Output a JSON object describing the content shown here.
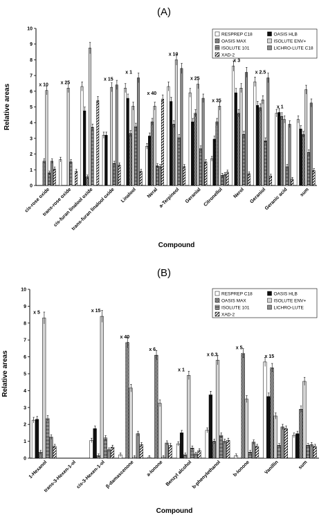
{
  "chart_data": [
    {
      "type": "bar",
      "title": "(A)",
      "xlabel": "Compound",
      "ylabel": "Relative areas",
      "ylim": [
        0,
        10
      ],
      "yticks": [
        "0",
        "1",
        "2",
        "3",
        "4",
        "5",
        "6",
        "7",
        "8",
        "9",
        "10"
      ],
      "legend_position": "top-right",
      "categories": [
        "cis-rose oxide",
        "trans-rose oxide",
        "cis-furan linalool oxide",
        "trans-furan linalool oxide",
        "Linalool",
        "Neral",
        "a-Terpineol",
        "Geranial",
        "Citronellol",
        "Nerol",
        "Geraniol",
        "Geranic acid",
        "sum"
      ],
      "annotations": [
        "x 10",
        "x 25",
        "",
        "x 15",
        "x 1",
        "x 40",
        "x 10",
        "x 25",
        "x 35",
        "x 3",
        "x 2.5",
        "x 1",
        ""
      ],
      "series": [
        {
          "name": "RESPREP C18",
          "values": [
            0,
            1.65,
            6.3,
            3.2,
            6.2,
            2.5,
            6.3,
            5.9,
            1.7,
            7.6,
            6.6,
            4.6,
            4.2
          ]
        },
        {
          "name": "OASIS HLB",
          "values": [
            0,
            0,
            4.75,
            3.2,
            5.55,
            3.15,
            5.35,
            4.05,
            2.95,
            5.9,
            5.1,
            4.65,
            3.6
          ]
        },
        {
          "name": "OASIS MAX",
          "values": [
            1.55,
            0,
            0.55,
            0,
            3.3,
            4.05,
            3.9,
            4.6,
            4.05,
            4.6,
            4.95,
            4.4,
            3.25
          ]
        },
        {
          "name": "ISOLUTE ENV+",
          "values": [
            6.05,
            6.2,
            8.75,
            6.25,
            5.05,
            5.05,
            8.0,
            6.45,
            5.05,
            6.2,
            5.45,
            4.2,
            6.1
          ]
        },
        {
          "name": "ISOLUTE 101",
          "values": [
            0.8,
            1.5,
            3.7,
            1.4,
            3.75,
            1.25,
            3.05,
            2.35,
            0.65,
            3.25,
            2.85,
            1.2,
            2.1
          ]
        },
        {
          "name": "LICHRO-LUTE C18",
          "values": [
            1.55,
            0,
            0,
            6.4,
            6.85,
            1.2,
            7.45,
            5.55,
            0.7,
            7.2,
            6.85,
            3.9,
            5.25
          ]
        },
        {
          "name": "XAD-2",
          "values": [
            1.05,
            0.9,
            5.4,
            1.3,
            0.9,
            5.5,
            1.2,
            1.5,
            0.85,
            0.75,
            0.6,
            0.4,
            0.95
          ]
        }
      ]
    },
    {
      "type": "bar",
      "title": "(B)",
      "xlabel": "Compound",
      "ylabel": "Relative areas",
      "ylim": [
        0,
        10
      ],
      "yticks": [
        "0",
        "1",
        "2",
        "3",
        "4",
        "5",
        "6",
        "7",
        "8",
        "9",
        "10"
      ],
      "legend_position": "top-right",
      "categories": [
        "1-Hexanol",
        "trans-3-Hexen-1-ol",
        "cis-3-Hexen-1-ol",
        "β-damascenone",
        "a-Ionone",
        "Benzyl alcohol",
        "b-phenylethanol",
        "b-Ionone",
        "Vanillin",
        "sum"
      ],
      "annotations": [
        "x 5",
        "",
        "x 15",
        "x 40",
        "x 6",
        "x 1",
        "x 0.3",
        "x 5",
        "x 15",
        ""
      ],
      "series": [
        {
          "name": "RESPREP C18",
          "values": [
            2.25,
            0,
            1.05,
            0.2,
            0.05,
            0.85,
            1.65,
            0.15,
            5.7,
            1.35
          ]
        },
        {
          "name": "OASIS HLB",
          "values": [
            2.3,
            0,
            1.75,
            0,
            0,
            1.5,
            3.75,
            0,
            3.65,
            1.45
          ]
        },
        {
          "name": "OASIS MAX",
          "values": [
            0.35,
            0,
            0.15,
            6.85,
            6.1,
            0.2,
            1.0,
            6.2,
            5.35,
            2.9
          ]
        },
        {
          "name": "ISOLUTE ENV+",
          "values": [
            8.3,
            0,
            8.4,
            4.15,
            3.25,
            4.9,
            5.8,
            3.5,
            2.5,
            4.55
          ]
        },
        {
          "name": "ISOLUTE 101",
          "values": [
            2.35,
            0,
            1.2,
            0.05,
            0.05,
            0.6,
            1.35,
            0.35,
            0.75,
            0.75
          ]
        },
        {
          "name": "LICHRO-LUTE",
          "values": [
            1.25,
            0,
            0.5,
            1.45,
            0.9,
            0.25,
            1.0,
            0.95,
            1.85,
            0.8
          ]
        },
        {
          "name": "XAD-2",
          "values": [
            0.7,
            0,
            0.65,
            0.8,
            0.75,
            0.45,
            1.05,
            0.7,
            1.75,
            0.7
          ]
        }
      ]
    }
  ]
}
